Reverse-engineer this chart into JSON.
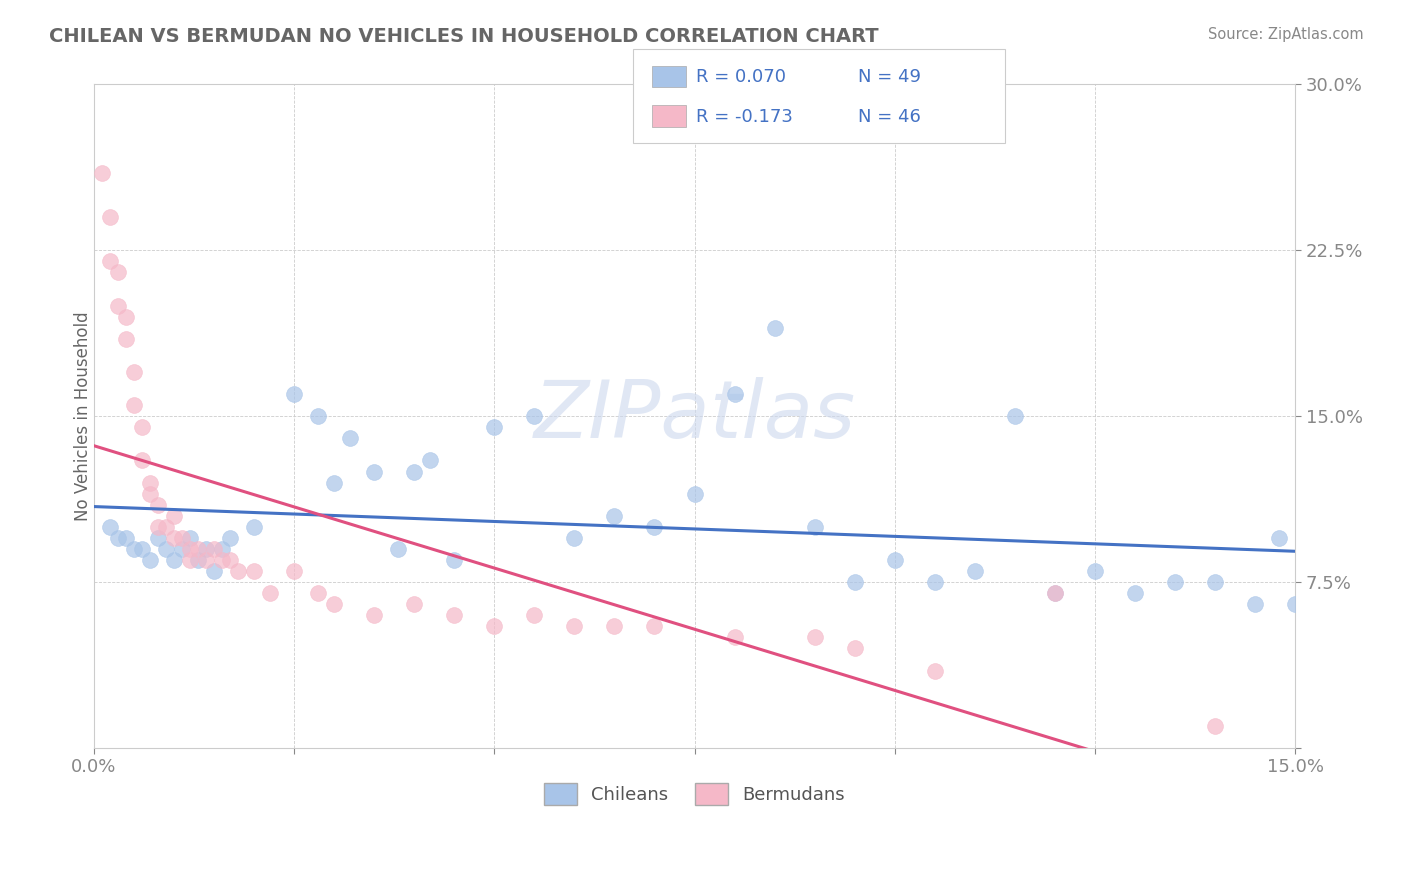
{
  "title": "CHILEAN VS BERMUDAN NO VEHICLES IN HOUSEHOLD CORRELATION CHART",
  "source": "Source: ZipAtlas.com",
  "ylabel": "No Vehicles in Household",
  "xlim": [
    0.0,
    0.15
  ],
  "ylim": [
    0.0,
    0.3
  ],
  "xticks": [
    0.0,
    0.025,
    0.05,
    0.075,
    0.1,
    0.125,
    0.15
  ],
  "xticklabels": [
    "0.0%",
    "",
    "",
    "",
    "",
    "",
    "15.0%"
  ],
  "yticks": [
    0.0,
    0.075,
    0.15,
    0.225,
    0.3
  ],
  "yticklabels": [
    "",
    "7.5%",
    "15.0%",
    "22.5%",
    "30.0%"
  ],
  "chilean_R": 0.07,
  "chilean_N": 49,
  "bermudan_R": -0.173,
  "bermudan_N": 46,
  "chilean_color": "#a8c4e8",
  "bermudan_color": "#f5b8c8",
  "chilean_line_color": "#4472c4",
  "bermudan_line_color": "#e05080",
  "tick_color": "#4472c4",
  "legend_R_color": "#4472c4",
  "watermark": "ZIPatlas",
  "background_color": "#ffffff",
  "chilean_x": [
    0.002,
    0.003,
    0.004,
    0.005,
    0.006,
    0.007,
    0.008,
    0.009,
    0.01,
    0.011,
    0.012,
    0.013,
    0.014,
    0.015,
    0.016,
    0.017,
    0.02,
    0.025,
    0.028,
    0.03,
    0.032,
    0.035,
    0.038,
    0.04,
    0.042,
    0.045,
    0.05,
    0.055,
    0.06,
    0.065,
    0.07,
    0.075,
    0.08,
    0.085,
    0.09,
    0.095,
    0.1,
    0.105,
    0.11,
    0.115,
    0.12,
    0.125,
    0.13,
    0.135,
    0.14,
    0.145,
    0.148,
    0.15,
    0.152
  ],
  "chilean_y": [
    0.1,
    0.095,
    0.095,
    0.09,
    0.09,
    0.085,
    0.095,
    0.09,
    0.085,
    0.09,
    0.095,
    0.085,
    0.09,
    0.08,
    0.09,
    0.095,
    0.1,
    0.16,
    0.15,
    0.12,
    0.14,
    0.125,
    0.09,
    0.125,
    0.13,
    0.085,
    0.145,
    0.15,
    0.095,
    0.105,
    0.1,
    0.115,
    0.16,
    0.19,
    0.1,
    0.075,
    0.085,
    0.075,
    0.08,
    0.15,
    0.07,
    0.08,
    0.07,
    0.075,
    0.075,
    0.065,
    0.095,
    0.065,
    0.065
  ],
  "bermudan_x": [
    0.001,
    0.002,
    0.002,
    0.003,
    0.003,
    0.004,
    0.004,
    0.005,
    0.005,
    0.006,
    0.006,
    0.007,
    0.007,
    0.008,
    0.008,
    0.009,
    0.01,
    0.01,
    0.011,
    0.012,
    0.012,
    0.013,
    0.014,
    0.015,
    0.016,
    0.017,
    0.018,
    0.02,
    0.022,
    0.025,
    0.028,
    0.03,
    0.035,
    0.04,
    0.045,
    0.05,
    0.055,
    0.06,
    0.065,
    0.07,
    0.08,
    0.09,
    0.095,
    0.105,
    0.12,
    0.14
  ],
  "bermudan_y": [
    0.26,
    0.24,
    0.22,
    0.215,
    0.2,
    0.195,
    0.185,
    0.17,
    0.155,
    0.145,
    0.13,
    0.12,
    0.115,
    0.11,
    0.1,
    0.1,
    0.105,
    0.095,
    0.095,
    0.09,
    0.085,
    0.09,
    0.085,
    0.09,
    0.085,
    0.085,
    0.08,
    0.08,
    0.07,
    0.08,
    0.07,
    0.065,
    0.06,
    0.065,
    0.06,
    0.055,
    0.06,
    0.055,
    0.055,
    0.055,
    0.05,
    0.05,
    0.045,
    0.035,
    0.07,
    0.01
  ]
}
